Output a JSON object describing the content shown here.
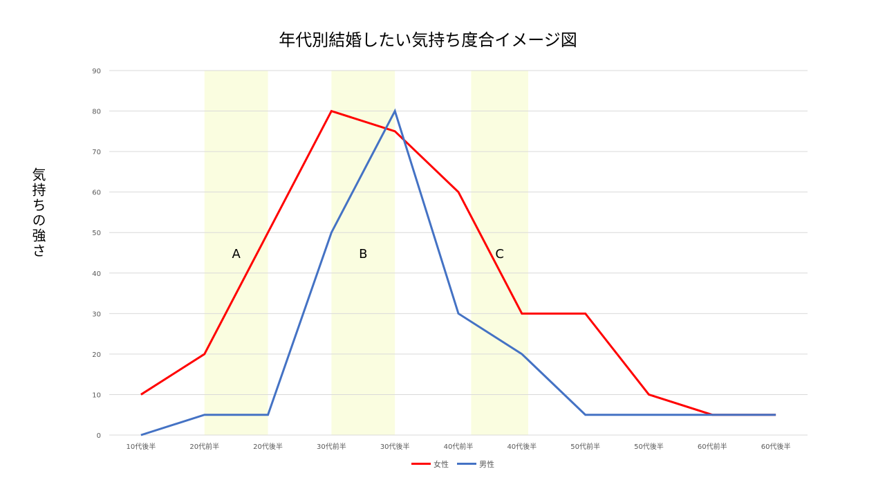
{
  "chart_data": {
    "type": "line",
    "title": "年代別結婚したい気持ち度合イメージ図",
    "ylabel": "気持ちの強さ",
    "xlabel": "",
    "categories": [
      "10代後半",
      "20代前半",
      "20代後半",
      "30代前半",
      "30代後半",
      "40代前半",
      "40代後半",
      "50代前半",
      "50代後半",
      "60代前半",
      "60代後半"
    ],
    "yticks": [
      0,
      10,
      20,
      30,
      40,
      50,
      60,
      70,
      80,
      90
    ],
    "ylim": [
      0,
      90
    ],
    "grid": true,
    "legend_position": "bottom",
    "series": [
      {
        "name": "女性",
        "color": "#ff0000",
        "values": [
          10,
          20,
          50,
          80,
          75,
          60,
          30,
          30,
          10,
          5,
          5
        ]
      },
      {
        "name": "男性",
        "color": "#4472c4",
        "values": [
          0,
          5,
          5,
          50,
          80,
          30,
          20,
          5,
          5,
          5,
          5
        ]
      }
    ],
    "highlight_bands": [
      {
        "label": "A",
        "from": 1,
        "to": 2
      },
      {
        "label": "B",
        "from": 3,
        "to": 4
      },
      {
        "label": "C",
        "from": 5.2,
        "to": 6.1
      }
    ],
    "band_color": "#fafde0",
    "grid_color": "#d9d9d9",
    "tick_color": "#595959"
  }
}
